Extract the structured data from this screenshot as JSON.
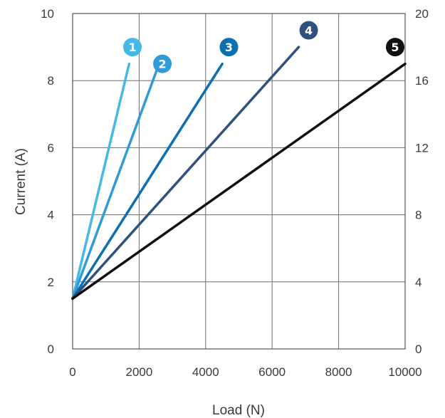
{
  "chart_data": {
    "type": "line",
    "xlabel": "Load (N)",
    "ylabel": "Current (A)",
    "xlim": [
      0,
      10000
    ],
    "ylim": [
      0,
      10
    ],
    "y2lim": [
      0,
      20
    ],
    "x_ticks": [
      0,
      2000,
      4000,
      6000,
      8000,
      10000
    ],
    "y_ticks": [
      0,
      2,
      4,
      6,
      8,
      10
    ],
    "y2_ticks": [
      0,
      4,
      8,
      12,
      16,
      20
    ],
    "grid": true,
    "series": [
      {
        "name": "1",
        "color": "#45b8e6",
        "x": [
          0,
          1700
        ],
        "y": [
          1.5,
          8.5
        ]
      },
      {
        "name": "2",
        "color": "#2f9cd8",
        "x": [
          0,
          2600
        ],
        "y": [
          1.5,
          8.5
        ]
      },
      {
        "name": "3",
        "color": "#0b6fb1",
        "x": [
          0,
          4500
        ],
        "y": [
          1.5,
          8.5
        ]
      },
      {
        "name": "4",
        "color": "#2e527e",
        "x": [
          0,
          6800
        ],
        "y": [
          1.5,
          9.0
        ]
      },
      {
        "name": "5",
        "color": "#111111",
        "x": [
          0,
          10000
        ],
        "y": [
          1.5,
          8.5
        ]
      }
    ],
    "badges": [
      {
        "label": "1",
        "x": 1800,
        "y": 9.0
      },
      {
        "label": "2",
        "x": 2700,
        "y": 8.5
      },
      {
        "label": "3",
        "x": 4700,
        "y": 9.0
      },
      {
        "label": "4",
        "x": 7100,
        "y": 9.5
      },
      {
        "label": "5",
        "x": 9700,
        "y": 9.0
      }
    ]
  }
}
